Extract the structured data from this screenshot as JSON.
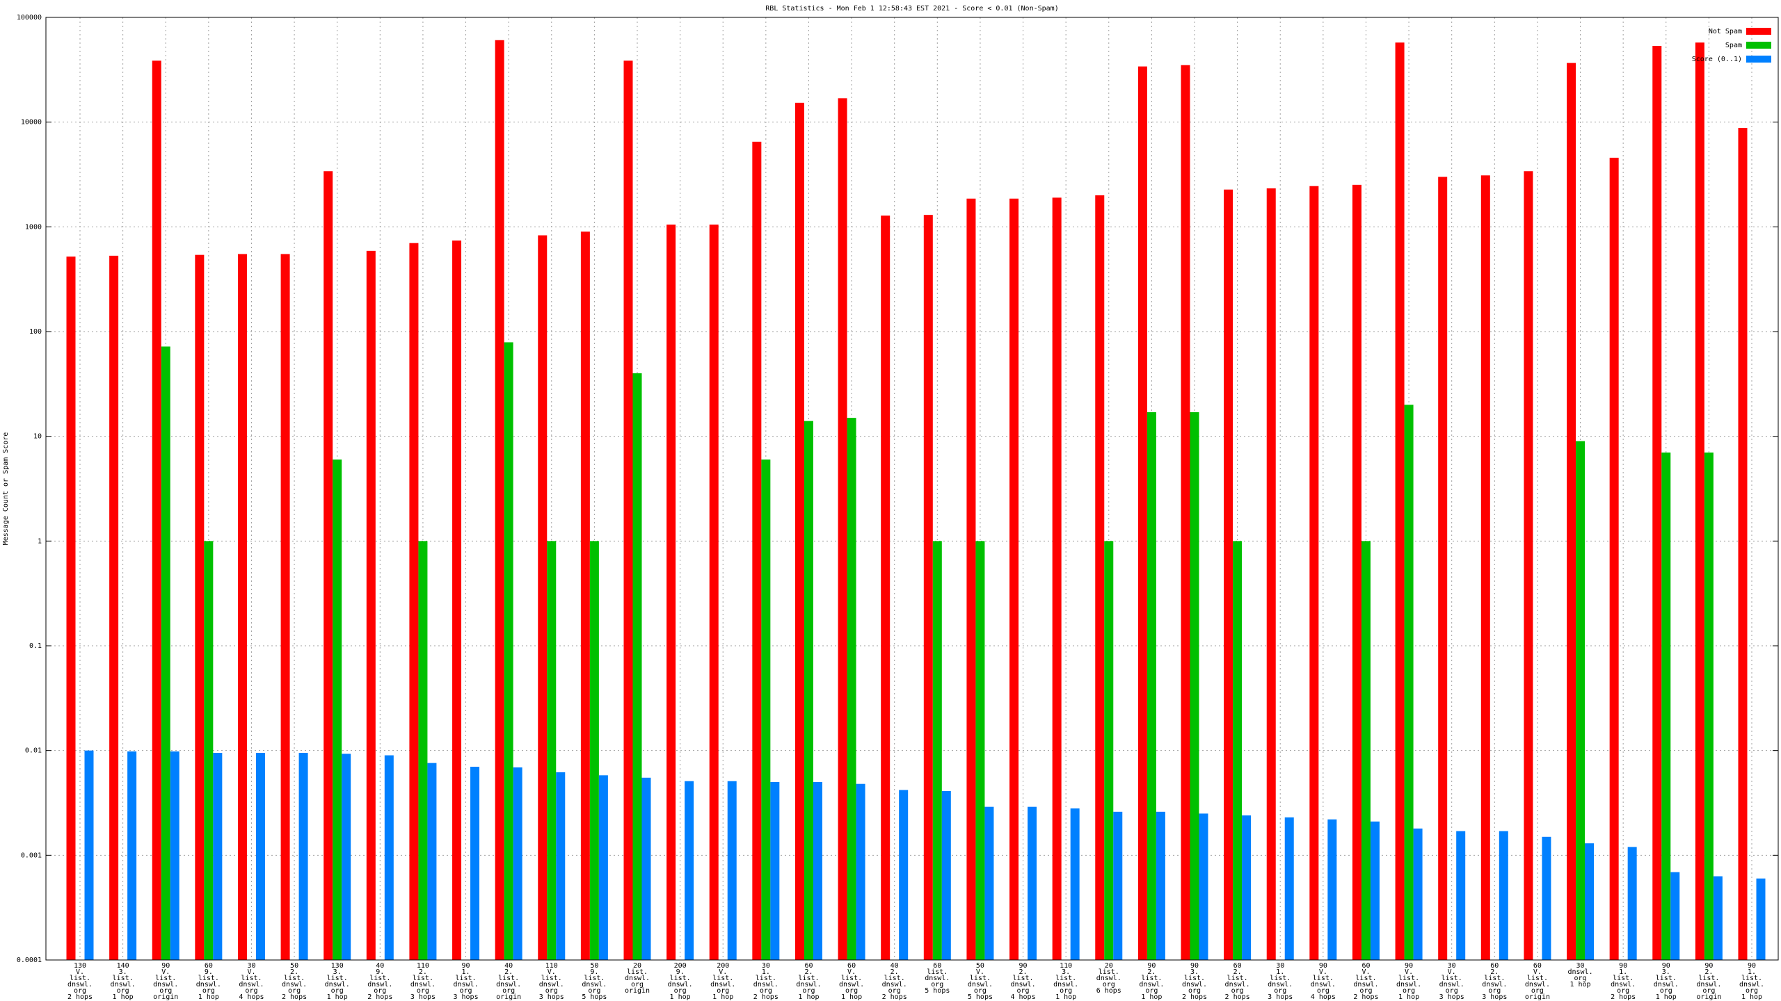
{
  "chart_data": {
    "type": "bar",
    "title": "RBL Statistics - Mon Feb  1 12:58:43 EST 2021 - Score < 0.01 (Non-Spam)",
    "y_label": "Message Count or Spam Score",
    "log_scale": true,
    "grid": true,
    "legend": "top-right",
    "ylim": [
      0.0001,
      100000
    ],
    "yticks": [
      0.0001,
      0.001,
      0.01,
      0.1,
      1,
      10,
      100,
      1000,
      10000,
      100000
    ],
    "categories": [
      [
        "130",
        "V.",
        "list.",
        "dnswl.",
        "org",
        "2 hops"
      ],
      [
        "140",
        "3.",
        "list.",
        "dnswl.",
        "org",
        "1 hop"
      ],
      [
        "90",
        "V.",
        "list.",
        "dnswl.",
        "org",
        "origin"
      ],
      [
        "60",
        "9.",
        "list.",
        "dnswl.",
        "org",
        "1 hop"
      ],
      [
        "30",
        "V.",
        "list.",
        "dnswl.",
        "org",
        "4 hops"
      ],
      [
        "50",
        "2.",
        "list.",
        "dnswl.",
        "org",
        "2 hops"
      ],
      [
        "130",
        "3.",
        "list.",
        "dnswl.",
        "org",
        "1 hop"
      ],
      [
        "40",
        "9.",
        "list.",
        "dnswl.",
        "org",
        "2 hops"
      ],
      [
        "110",
        "2.",
        "list.",
        "dnswl.",
        "org",
        "3 hops"
      ],
      [
        "90",
        "1.",
        "list.",
        "dnswl.",
        "org",
        "3 hops"
      ],
      [
        "40",
        "2.",
        "list.",
        "dnswl.",
        "org",
        "origin"
      ],
      [
        "110",
        "V.",
        "list.",
        "dnswl.",
        "org",
        "3 hops"
      ],
      [
        "50",
        "9.",
        "list.",
        "dnswl.",
        "org",
        "5 hops"
      ],
      [
        "20",
        "list.",
        "dnswl.",
        "org",
        "origin"
      ],
      [
        "200",
        "9.",
        "list.",
        "dnswl.",
        "org",
        "1 hop"
      ],
      [
        "200",
        "V.",
        "list.",
        "dnswl.",
        "org",
        "1 hop"
      ],
      [
        "30",
        "1.",
        "list.",
        "dnswl.",
        "org",
        "2 hops"
      ],
      [
        "60",
        "2.",
        "list.",
        "dnswl.",
        "org",
        "1 hop"
      ],
      [
        "60",
        "V.",
        "list.",
        "dnswl.",
        "org",
        "1 hop"
      ],
      [
        "40",
        "2.",
        "list.",
        "dnswl.",
        "org",
        "2 hops"
      ],
      [
        "60",
        "list.",
        "dnswl.",
        "org",
        "5 hops"
      ],
      [
        "50",
        "V.",
        "list.",
        "dnswl.",
        "org",
        "5 hops"
      ],
      [
        "90",
        "2.",
        "list.",
        "dnswl.",
        "org",
        "4 hops"
      ],
      [
        "110",
        "3.",
        "list.",
        "dnswl.",
        "org",
        "1 hop"
      ],
      [
        "20",
        "list.",
        "dnswl.",
        "org",
        "6 hops"
      ],
      [
        "90",
        "2.",
        "list.",
        "dnswl.",
        "org",
        "1 hop"
      ],
      [
        "90",
        "3.",
        "list.",
        "dnswl.",
        "org",
        "2 hops"
      ],
      [
        "60",
        "2.",
        "list.",
        "dnswl.",
        "org",
        "2 hops"
      ],
      [
        "30",
        "1.",
        "list.",
        "dnswl.",
        "org",
        "3 hops"
      ],
      [
        "90",
        "V.",
        "list.",
        "dnswl.",
        "org",
        "4 hops"
      ],
      [
        "60",
        "V.",
        "list.",
        "dnswl.",
        "org",
        "2 hops"
      ],
      [
        "90",
        "V.",
        "list.",
        "dnswl.",
        "org",
        "1 hop"
      ],
      [
        "30",
        "V.",
        "list.",
        "dnswl.",
        "org",
        "3 hops"
      ],
      [
        "60",
        "2.",
        "list.",
        "dnswl.",
        "org",
        "3 hops"
      ],
      [
        "60",
        "V.",
        "list.",
        "dnswl.",
        "org",
        "origin"
      ],
      [
        "30",
        "dnswl.",
        "org",
        "1 hop"
      ],
      [
        "90",
        "1.",
        "list.",
        "dnswl.",
        "org",
        "2 hops"
      ],
      [
        "90",
        "3.",
        "list.",
        "dnswl.",
        "org",
        "1 hop"
      ],
      [
        "90",
        "2.",
        "list.",
        "dnswl.",
        "org",
        "origin"
      ],
      [
        "90",
        "1.",
        "list.",
        "dnswl.",
        "org",
        "1 hop"
      ]
    ],
    "series": [
      {
        "name": "Not Spam",
        "color": "#ff0000",
        "values": [
          520,
          530,
          38600,
          540,
          550,
          550,
          3400,
          590,
          700,
          740,
          60600,
          830,
          900,
          38600,
          1050,
          1050,
          6500,
          15300,
          16900,
          1280,
          1300,
          1860,
          1860,
          1900,
          2000,
          34000,
          35000,
          2270,
          2330,
          2450,
          2520,
          57500,
          3000,
          3100,
          3400,
          36700,
          4570,
          53400,
          57500,
          8800
        ]
      },
      {
        "name": "Spam",
        "color": "#00c000",
        "values": [
          null,
          null,
          72,
          1,
          null,
          null,
          6,
          null,
          1,
          null,
          79,
          1,
          1,
          40,
          null,
          null,
          6,
          14,
          15,
          null,
          1,
          1,
          null,
          null,
          1,
          17,
          17,
          1,
          null,
          null,
          1,
          20,
          null,
          null,
          null,
          9,
          null,
          7,
          7,
          null
        ]
      },
      {
        "name": "Score (0..1)",
        "color": "#0080ff",
        "values": [
          0.01,
          0.0098,
          0.0098,
          0.0095,
          0.0095,
          0.0095,
          0.0093,
          0.009,
          0.0076,
          0.007,
          0.0069,
          0.0062,
          0.0058,
          0.0055,
          0.0051,
          0.0051,
          0.005,
          0.005,
          0.0048,
          0.0042,
          0.0041,
          0.0029,
          0.0029,
          0.0028,
          0.0026,
          0.0026,
          0.0025,
          0.0024,
          0.0023,
          0.0022,
          0.0021,
          0.0018,
          0.0017,
          0.0017,
          0.0015,
          0.0013,
          0.0012,
          0.00069,
          0.00063,
          0.0006
        ]
      }
    ]
  }
}
